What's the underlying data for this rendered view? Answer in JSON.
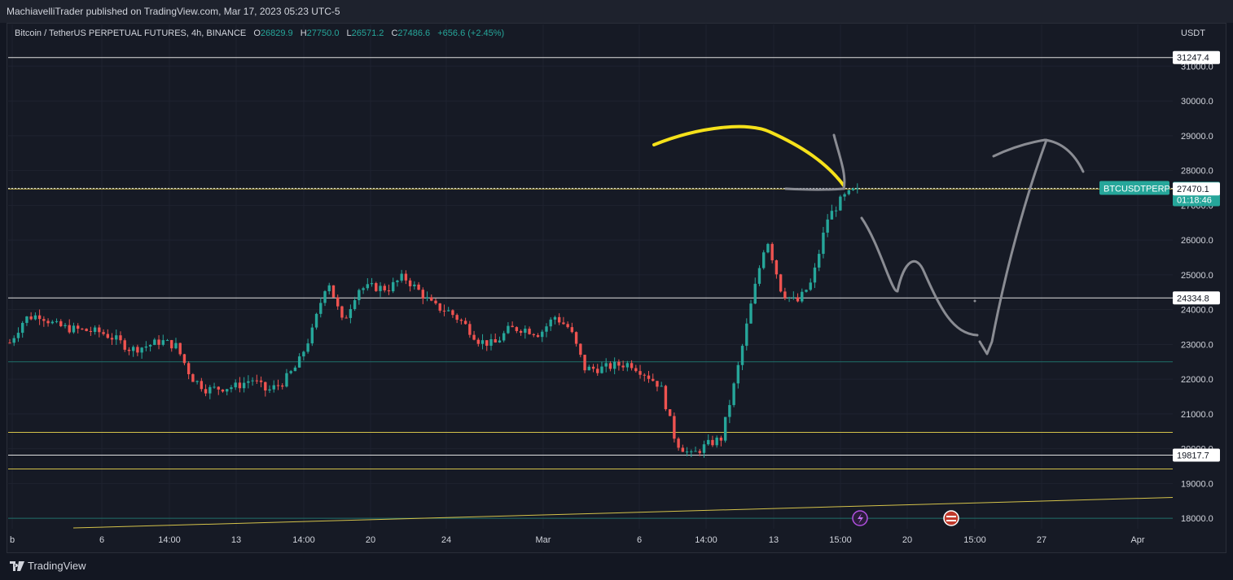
{
  "header": {
    "published": "MachiavelliTrader published on TradingView.com, Mar 17, 2023 05:23 UTC-5"
  },
  "legend": {
    "symbol": "Bitcoin / TetherUS PERPETUAL FUTURES, 4h, BINANCE",
    "o_label": "O",
    "o": "26829.9",
    "h_label": "H",
    "h": "27750.0",
    "l_label": "L",
    "l": "26571.2",
    "c_label": "C",
    "c": "27486.6",
    "change": "+656.6 (+2.45%)"
  },
  "axis_currency": "USDT",
  "footer": {
    "brand": "TradingView"
  },
  "colors": {
    "up": "#26a69a",
    "down": "#ef5350",
    "bg": "#161a25",
    "level_yellow": "#d4c24a",
    "level_teal": "#1f6f6a",
    "drawing_yellow": "#f5e11a",
    "drawing_gray": "#8a8c93",
    "price_tag": "#26a69a"
  },
  "chart_data": {
    "type": "candlestick",
    "y_axis_ticks": [
      "31000.0",
      "30000.0",
      "29000.0",
      "28000.0",
      "27000.0",
      "26000.0",
      "25000.0",
      "24000.0",
      "23000.0",
      "22000.0",
      "21000.0",
      "20000.0",
      "19000.0",
      "18000.0"
    ],
    "ylim": [
      17700,
      32200
    ],
    "x_axis_ticks": [
      "b",
      "6",
      "14:00",
      "13",
      "14:00",
      "20",
      "24",
      "Mar",
      "6",
      "14:00",
      "13",
      "15:00",
      "20",
      "15:00",
      "27",
      "Apr"
    ],
    "price_labels": [
      {
        "text": "31247.4",
        "value": 31247.4,
        "style": "white"
      },
      {
        "text": "27486.6",
        "value": 27486.6,
        "style": "current"
      },
      {
        "text": "01:18:46",
        "value": null,
        "style": "timer"
      },
      {
        "text": "27470.1",
        "value": 27470.1,
        "style": "white"
      },
      {
        "text": "24334.8",
        "value": 24334.8,
        "style": "white"
      },
      {
        "text": "19817.7",
        "value": 19817.7,
        "style": "white"
      }
    ],
    "symbol_tag": "BTCUSDTPERP",
    "horizontal_levels": [
      {
        "value": 31247.4,
        "color": "white"
      },
      {
        "value": 27470.1,
        "color": "yellow"
      },
      {
        "value": 24334.8,
        "color": "white"
      },
      {
        "value": 22500,
        "color": "teal"
      },
      {
        "value": 20470,
        "color": "yellow"
      },
      {
        "value": 19817.7,
        "color": "white"
      },
      {
        "value": 19420,
        "color": "yellow"
      },
      {
        "value": 18000,
        "color": "teal"
      }
    ],
    "price_path": [
      [
        23050,
        0
      ],
      [
        23750,
        1
      ],
      [
        23850,
        2
      ],
      [
        23550,
        3
      ],
      [
        23450,
        4
      ],
      [
        23400,
        5
      ],
      [
        23350,
        6
      ],
      [
        23150,
        7
      ],
      [
        22850,
        8
      ],
      [
        22950,
        9
      ],
      [
        23100,
        10
      ],
      [
        22950,
        11
      ],
      [
        22050,
        12
      ],
      [
        21700,
        13
      ],
      [
        21750,
        14
      ],
      [
        21800,
        15
      ],
      [
        22000,
        16
      ],
      [
        21650,
        17
      ],
      [
        21900,
        18
      ],
      [
        22400,
        19
      ],
      [
        23400,
        20
      ],
      [
        24900,
        21
      ],
      [
        23600,
        22
      ],
      [
        24600,
        23
      ],
      [
        24650,
        24
      ],
      [
        24600,
        25
      ],
      [
        24950,
        26
      ],
      [
        24550,
        27
      ],
      [
        24100,
        28
      ],
      [
        23950,
        29
      ],
      [
        23600,
        30
      ],
      [
        23100,
        31
      ],
      [
        23000,
        32
      ],
      [
        23450,
        33
      ],
      [
        23450,
        34
      ],
      [
        23300,
        35
      ],
      [
        23800,
        36
      ],
      [
        23450,
        37
      ],
      [
        22300,
        38
      ],
      [
        22300,
        39
      ],
      [
        22400,
        40
      ],
      [
        22450,
        41
      ],
      [
        22150,
        42
      ],
      [
        21800,
        43
      ],
      [
        20200,
        44
      ],
      [
        19800,
        45
      ],
      [
        20100,
        46
      ],
      [
        20300,
        47
      ],
      [
        22100,
        48
      ],
      [
        24200,
        49
      ],
      [
        26100,
        50
      ],
      [
        24500,
        51
      ],
      [
        24200,
        52
      ],
      [
        24800,
        53
      ],
      [
        26600,
        54
      ],
      [
        27200,
        55
      ],
      [
        27486.6,
        56
      ]
    ]
  }
}
